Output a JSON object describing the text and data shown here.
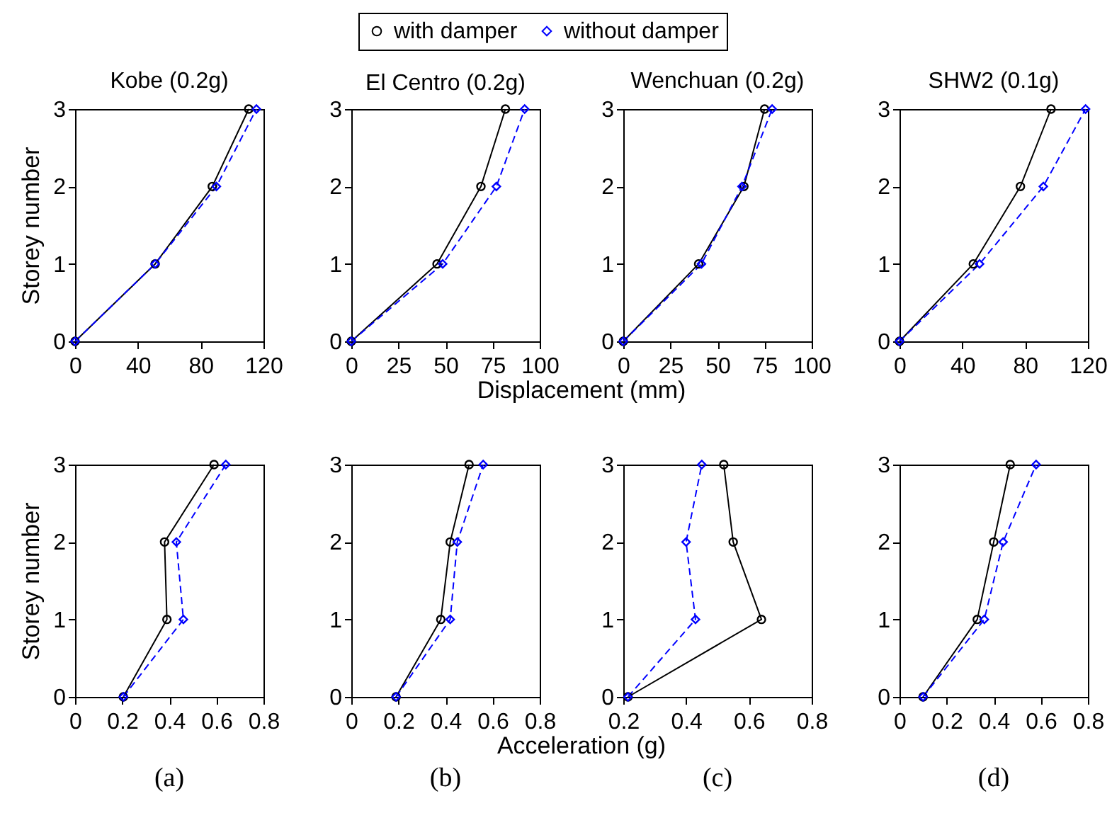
{
  "chart_data": [
    {
      "type": "line",
      "title": "Kobe (0.2g)",
      "ylabel": "Storey number",
      "xlim": [
        0,
        120
      ],
      "xticks": [
        0,
        40,
        80,
        120
      ],
      "ylim": [
        0,
        3
      ],
      "yticks": [
        0,
        1,
        2,
        3
      ],
      "grid": false,
      "series": [
        {
          "color": "#000000",
          "marker": "circle",
          "line_style": "solid",
          "x": [
            0,
            51,
            87.4,
            110.6
          ],
          "values": [
            0,
            1,
            2,
            3
          ]
        },
        {
          "color": "#0000ff",
          "marker": "diamond",
          "line_style": "dashed",
          "x": [
            0,
            51,
            90,
            115.5
          ],
          "values": [
            0,
            1,
            2,
            3
          ]
        }
      ]
    },
    {
      "type": "line",
      "title": "El Centro (0.2g)",
      "xlabel": "Displacement (mm)",
      "legend": "top",
      "xlim": [
        0,
        100
      ],
      "xticks": [
        0,
        25,
        50,
        75,
        100
      ],
      "ylim": [
        0,
        3
      ],
      "yticks": [
        0,
        1,
        2,
        3
      ],
      "grid": false,
      "series": [
        {
          "name": "with damper",
          "color": "#000000",
          "marker": "circle",
          "line_style": "solid",
          "x": [
            0,
            45.5,
            68.8,
            81.8
          ],
          "values": [
            0,
            1,
            2,
            3
          ]
        },
        {
          "name": "without damper",
          "color": "#0000ff",
          "marker": "diamond",
          "line_style": "dashed",
          "x": [
            0,
            48.5,
            77,
            92
          ],
          "values": [
            0,
            1,
            2,
            3
          ]
        }
      ]
    },
    {
      "type": "line",
      "title": "Wenchuan (0.2g)",
      "xlim": [
        0,
        100
      ],
      "xticks": [
        0,
        25,
        50,
        75,
        100
      ],
      "ylim": [
        0,
        3
      ],
      "yticks": [
        0,
        1,
        2,
        3
      ],
      "grid": false,
      "series": [
        {
          "color": "#000000",
          "marker": "circle",
          "line_style": "solid",
          "x": [
            0,
            40,
            64,
            75
          ],
          "values": [
            0,
            1,
            2,
            3
          ]
        },
        {
          "color": "#0000ff",
          "marker": "diamond",
          "line_style": "dashed",
          "x": [
            0,
            41.5,
            63,
            79
          ],
          "values": [
            0,
            1,
            2,
            3
          ]
        }
      ]
    },
    {
      "type": "line",
      "title": "SHW2 (0.1g)",
      "xlim": [
        0,
        120
      ],
      "xticks": [
        0,
        40,
        80,
        120
      ],
      "ylim": [
        0,
        3
      ],
      "yticks": [
        0,
        1,
        2,
        3
      ],
      "grid": false,
      "series": [
        {
          "color": "#000000",
          "marker": "circle",
          "line_style": "solid",
          "x": [
            0,
            47,
            77,
            96.5
          ],
          "values": [
            0,
            1,
            2,
            3
          ]
        },
        {
          "color": "#0000ff",
          "marker": "diamond",
          "line_style": "dashed",
          "x": [
            0,
            51,
            91.6,
            118.5
          ],
          "values": [
            0,
            1,
            2,
            3
          ]
        }
      ]
    },
    {
      "type": "line",
      "ylabel": "Storey number",
      "annotations": [
        "(a)"
      ],
      "xlim": [
        0,
        0.8
      ],
      "xticks": [
        0,
        0.2,
        0.4,
        0.6,
        0.8
      ],
      "ylim": [
        0,
        3
      ],
      "yticks": [
        0,
        1,
        2,
        3
      ],
      "grid": false,
      "series": [
        {
          "color": "#000000",
          "marker": "circle",
          "line_style": "solid",
          "x": [
            0.205,
            0.39,
            0.38,
            0.59
          ],
          "values": [
            0,
            1,
            2,
            3
          ]
        },
        {
          "color": "#0000ff",
          "marker": "diamond",
          "line_style": "dashed",
          "x": [
            0.205,
            0.46,
            0.43,
            0.64
          ],
          "values": [
            0,
            1,
            2,
            3
          ]
        }
      ]
    },
    {
      "type": "line",
      "xlabel": "Acceleration (g)",
      "annotations": [
        "(b)"
      ],
      "xlim": [
        0,
        0.8
      ],
      "xticks": [
        0,
        0.2,
        0.4,
        0.6,
        0.8
      ],
      "ylim": [
        0,
        3
      ],
      "yticks": [
        0,
        1,
        2,
        3
      ],
      "grid": false,
      "series": [
        {
          "color": "#000000",
          "marker": "circle",
          "line_style": "solid",
          "x": [
            0.19,
            0.38,
            0.42,
            0.5
          ],
          "values": [
            0,
            1,
            2,
            3
          ]
        },
        {
          "color": "#0000ff",
          "marker": "diamond",
          "line_style": "dashed",
          "x": [
            0.19,
            0.42,
            0.45,
            0.56
          ],
          "values": [
            0,
            1,
            2,
            3
          ]
        }
      ]
    },
    {
      "type": "line",
      "annotations": [
        "(c)"
      ],
      "xlim": [
        0.2,
        0.8
      ],
      "xticks": [
        0.2,
        0.4,
        0.6,
        0.8
      ],
      "ylim": [
        0,
        3
      ],
      "yticks": [
        0,
        1,
        2,
        3
      ],
      "grid": false,
      "series": [
        {
          "color": "#000000",
          "marker": "circle",
          "line_style": "solid",
          "x": [
            0.215,
            0.64,
            0.55,
            0.52
          ],
          "values": [
            0,
            1,
            2,
            3
          ]
        },
        {
          "color": "#0000ff",
          "marker": "diamond",
          "line_style": "dashed",
          "x": [
            0.215,
            0.43,
            0.4,
            0.45
          ],
          "values": [
            0,
            1,
            2,
            3
          ]
        }
      ]
    },
    {
      "type": "line",
      "annotations": [
        "(d)"
      ],
      "xlim": [
        0,
        0.8
      ],
      "xticks": [
        0,
        0.2,
        0.4,
        0.6,
        0.8
      ],
      "ylim": [
        0,
        3
      ],
      "yticks": [
        0,
        1,
        2,
        3
      ],
      "grid": false,
      "series": [
        {
          "color": "#000000",
          "marker": "circle",
          "line_style": "solid",
          "x": [
            0.1,
            0.33,
            0.4,
            0.47
          ],
          "values": [
            0,
            1,
            2,
            3
          ]
        },
        {
          "color": "#0000ff",
          "marker": "diamond",
          "line_style": "dashed",
          "x": [
            0.1,
            0.36,
            0.44,
            0.58
          ],
          "values": [
            0,
            1,
            2,
            3
          ]
        }
      ]
    }
  ]
}
